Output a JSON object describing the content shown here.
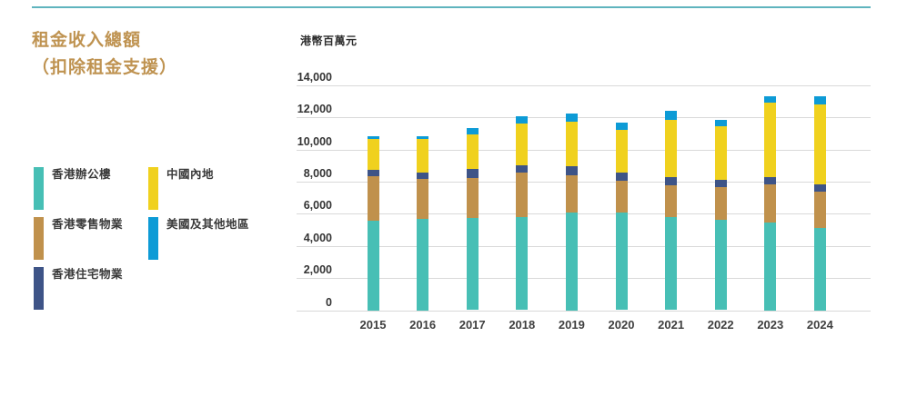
{
  "page": {
    "title_line1": "租金收入總額",
    "title_line2": "（扣除租金支援）",
    "title_color": "#bf9351",
    "accent_rule_color": "#5fb4be",
    "background_color": "#ffffff"
  },
  "chart_data": {
    "type": "bar",
    "stacked": true,
    "title": "租金收入總額（扣除租金支援）",
    "ylabel": "港幣百萬元",
    "xlabel": "",
    "categories": [
      "2015",
      "2016",
      "2017",
      "2018",
      "2019",
      "2020",
      "2021",
      "2022",
      "2023",
      "2024"
    ],
    "series": [
      {
        "name": "香港辦公樓",
        "color": "#47bfb5",
        "values": [
          5600,
          5700,
          5750,
          5800,
          6100,
          6100,
          5800,
          5600,
          5450,
          5100
        ]
      },
      {
        "name": "香港零售物業",
        "color": "#c0914c",
        "values": [
          2750,
          2500,
          2500,
          2750,
          2300,
          1950,
          2000,
          2050,
          2400,
          2300
        ]
      },
      {
        "name": "香港住宅物業",
        "color": "#3e5487",
        "values": [
          400,
          350,
          550,
          500,
          550,
          500,
          500,
          450,
          450,
          450
        ]
      },
      {
        "name": "中國內地",
        "color": "#f0d11e",
        "values": [
          1900,
          2100,
          2150,
          2550,
          2800,
          2700,
          3550,
          3350,
          4600,
          4950
        ]
      },
      {
        "name": "美國及其他地區",
        "color": "#0d9bd6",
        "values": [
          200,
          200,
          400,
          500,
          500,
          450,
          550,
          400,
          400,
          500
        ]
      }
    ],
    "totals": [
      10850,
      10850,
      11350,
      12100,
      12250,
      11700,
      12400,
      11850,
      13300,
      13300
    ],
    "ylim": [
      0,
      14000
    ],
    "ytick_step": 2000,
    "ytick_labels": [
      "0",
      "2,000",
      "4,000",
      "6,000",
      "8,000",
      "10,000",
      "12,000",
      "14,000"
    ],
    "grid": "horizontal",
    "gridline_color": "#d9d9d9",
    "legend_position": "left"
  },
  "legend": {
    "items": [
      {
        "label": "香港辦公樓",
        "color": "#47bfb5"
      },
      {
        "label": "中國內地",
        "color": "#f0d11e"
      },
      {
        "label": "香港零售物業",
        "color": "#c0914c"
      },
      {
        "label": "美國及其他地區",
        "color": "#0d9bd6"
      },
      {
        "label": "香港住宅物業",
        "color": "#3e5487"
      }
    ]
  }
}
